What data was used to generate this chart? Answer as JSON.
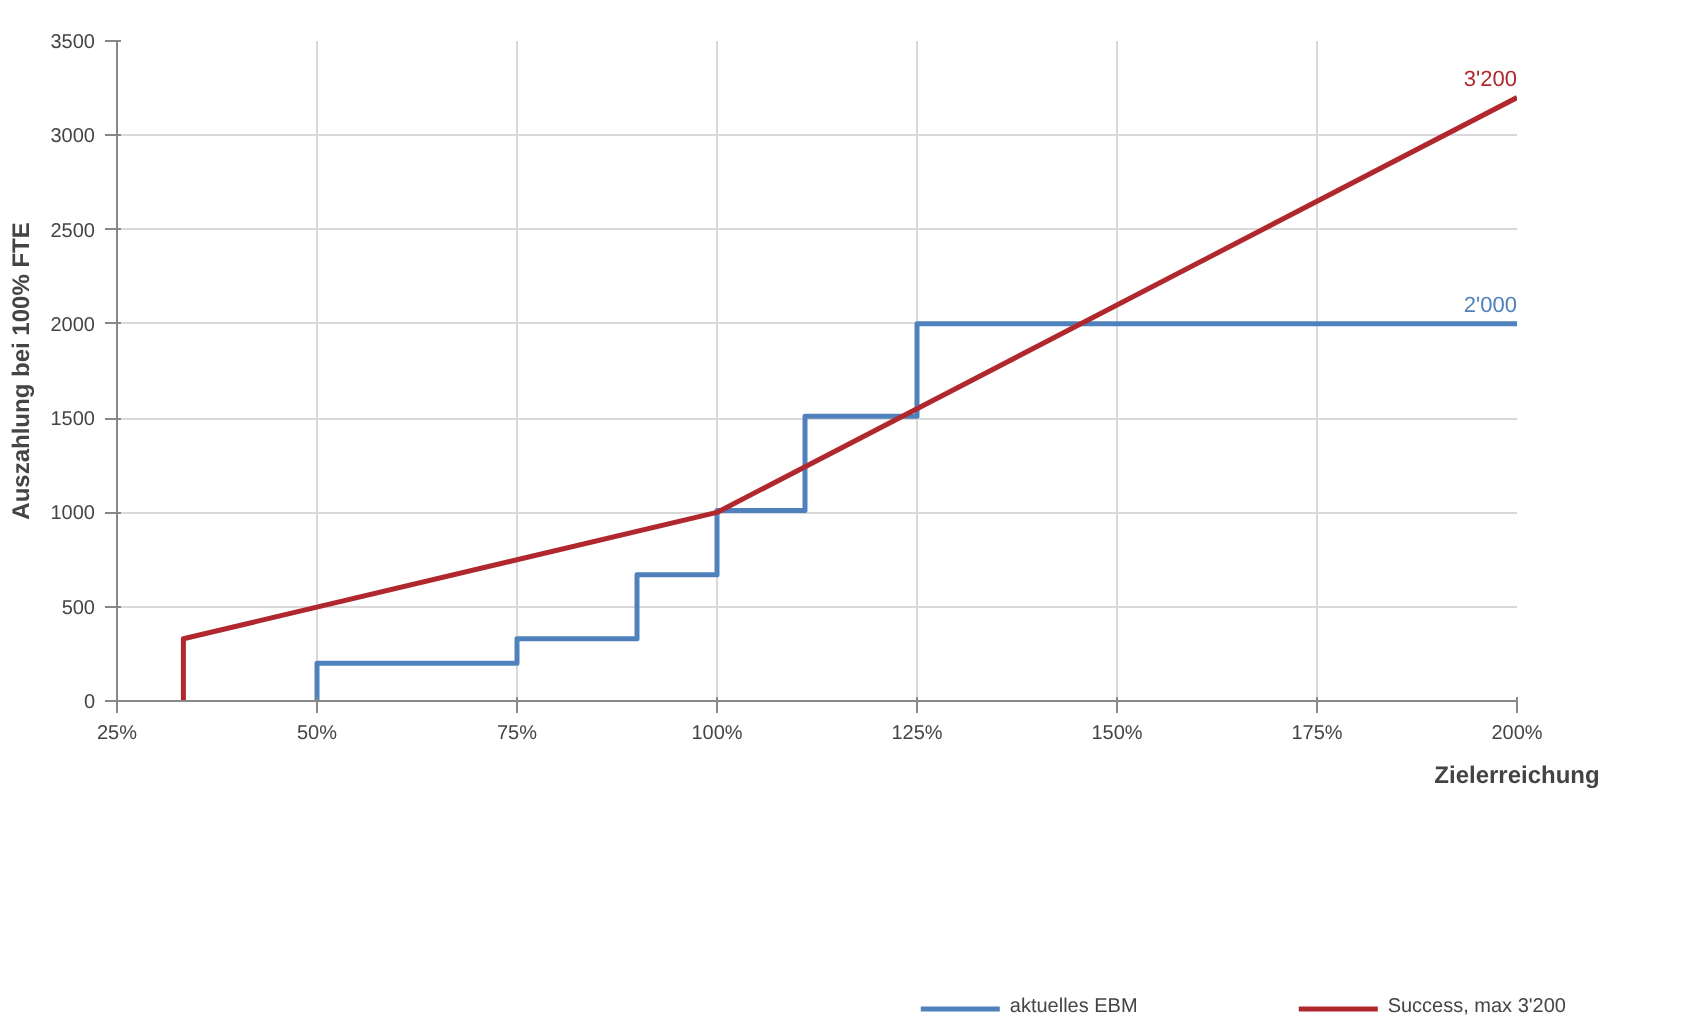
{
  "chart_data": {
    "type": "line",
    "xlabel": "Zielerreichung",
    "ylabel": "Auszahlung bei 100% FTE",
    "xlim": [
      25,
      200
    ],
    "ylim": [
      0,
      3500
    ],
    "xticks": [
      {
        "value": 25,
        "label": "25%"
      },
      {
        "value": 50,
        "label": "50%"
      },
      {
        "value": 75,
        "label": "75%"
      },
      {
        "value": 100,
        "label": "100%"
      },
      {
        "value": 125,
        "label": "125%"
      },
      {
        "value": 150,
        "label": "150%"
      },
      {
        "value": 175,
        "label": "175%"
      },
      {
        "value": 200,
        "label": "200%"
      }
    ],
    "yticks": [
      0,
      500,
      1000,
      1500,
      2000,
      2500,
      3000,
      3500
    ],
    "grid": true,
    "legend": "bottom",
    "marker": "none",
    "line_style": "solid",
    "series": [
      {
        "name": "aktuelles EBM",
        "color": "#4f81bd",
        "x": [
          50,
          50,
          75,
          75,
          90,
          90,
          100,
          100,
          111,
          111,
          125,
          125,
          200
        ],
        "values": [
          0,
          200,
          200,
          330,
          330,
          670,
          670,
          1010,
          1010,
          1510,
          1510,
          2000,
          2000
        ]
      },
      {
        "name": "Success, max 3'200",
        "color": "#b0282d",
        "x": [
          33.3,
          33.3,
          100,
          200
        ],
        "values": [
          0,
          330,
          1000,
          3200
        ]
      }
    ],
    "annotations": [
      {
        "text": "3'200",
        "x": 200,
        "y": 3200
      },
      {
        "text": "2'000",
        "x": 200,
        "y": 2000
      }
    ]
  }
}
